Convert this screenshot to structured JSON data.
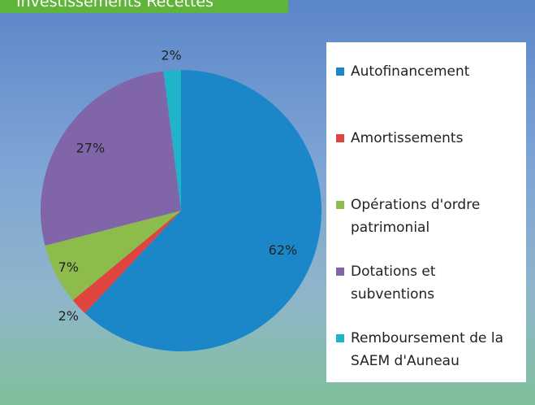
{
  "chart_data": {
    "type": "pie",
    "title": "Investissements Recettes",
    "categories": [
      "Autofinancement",
      "Amortissements",
      "Opérations d'ordre patrimonial",
      "Dotations et subventions",
      "Remboursement de la SAEM d'Auneau"
    ],
    "values": [
      62,
      2,
      7,
      27,
      2
    ],
    "value_labels": [
      "62%",
      "2%",
      "7%",
      "27%",
      "2%"
    ],
    "colors": [
      "#1b87c8",
      "#e0443f",
      "#8dbb4c",
      "#8066a8",
      "#20b3c9"
    ],
    "legend": "right"
  }
}
